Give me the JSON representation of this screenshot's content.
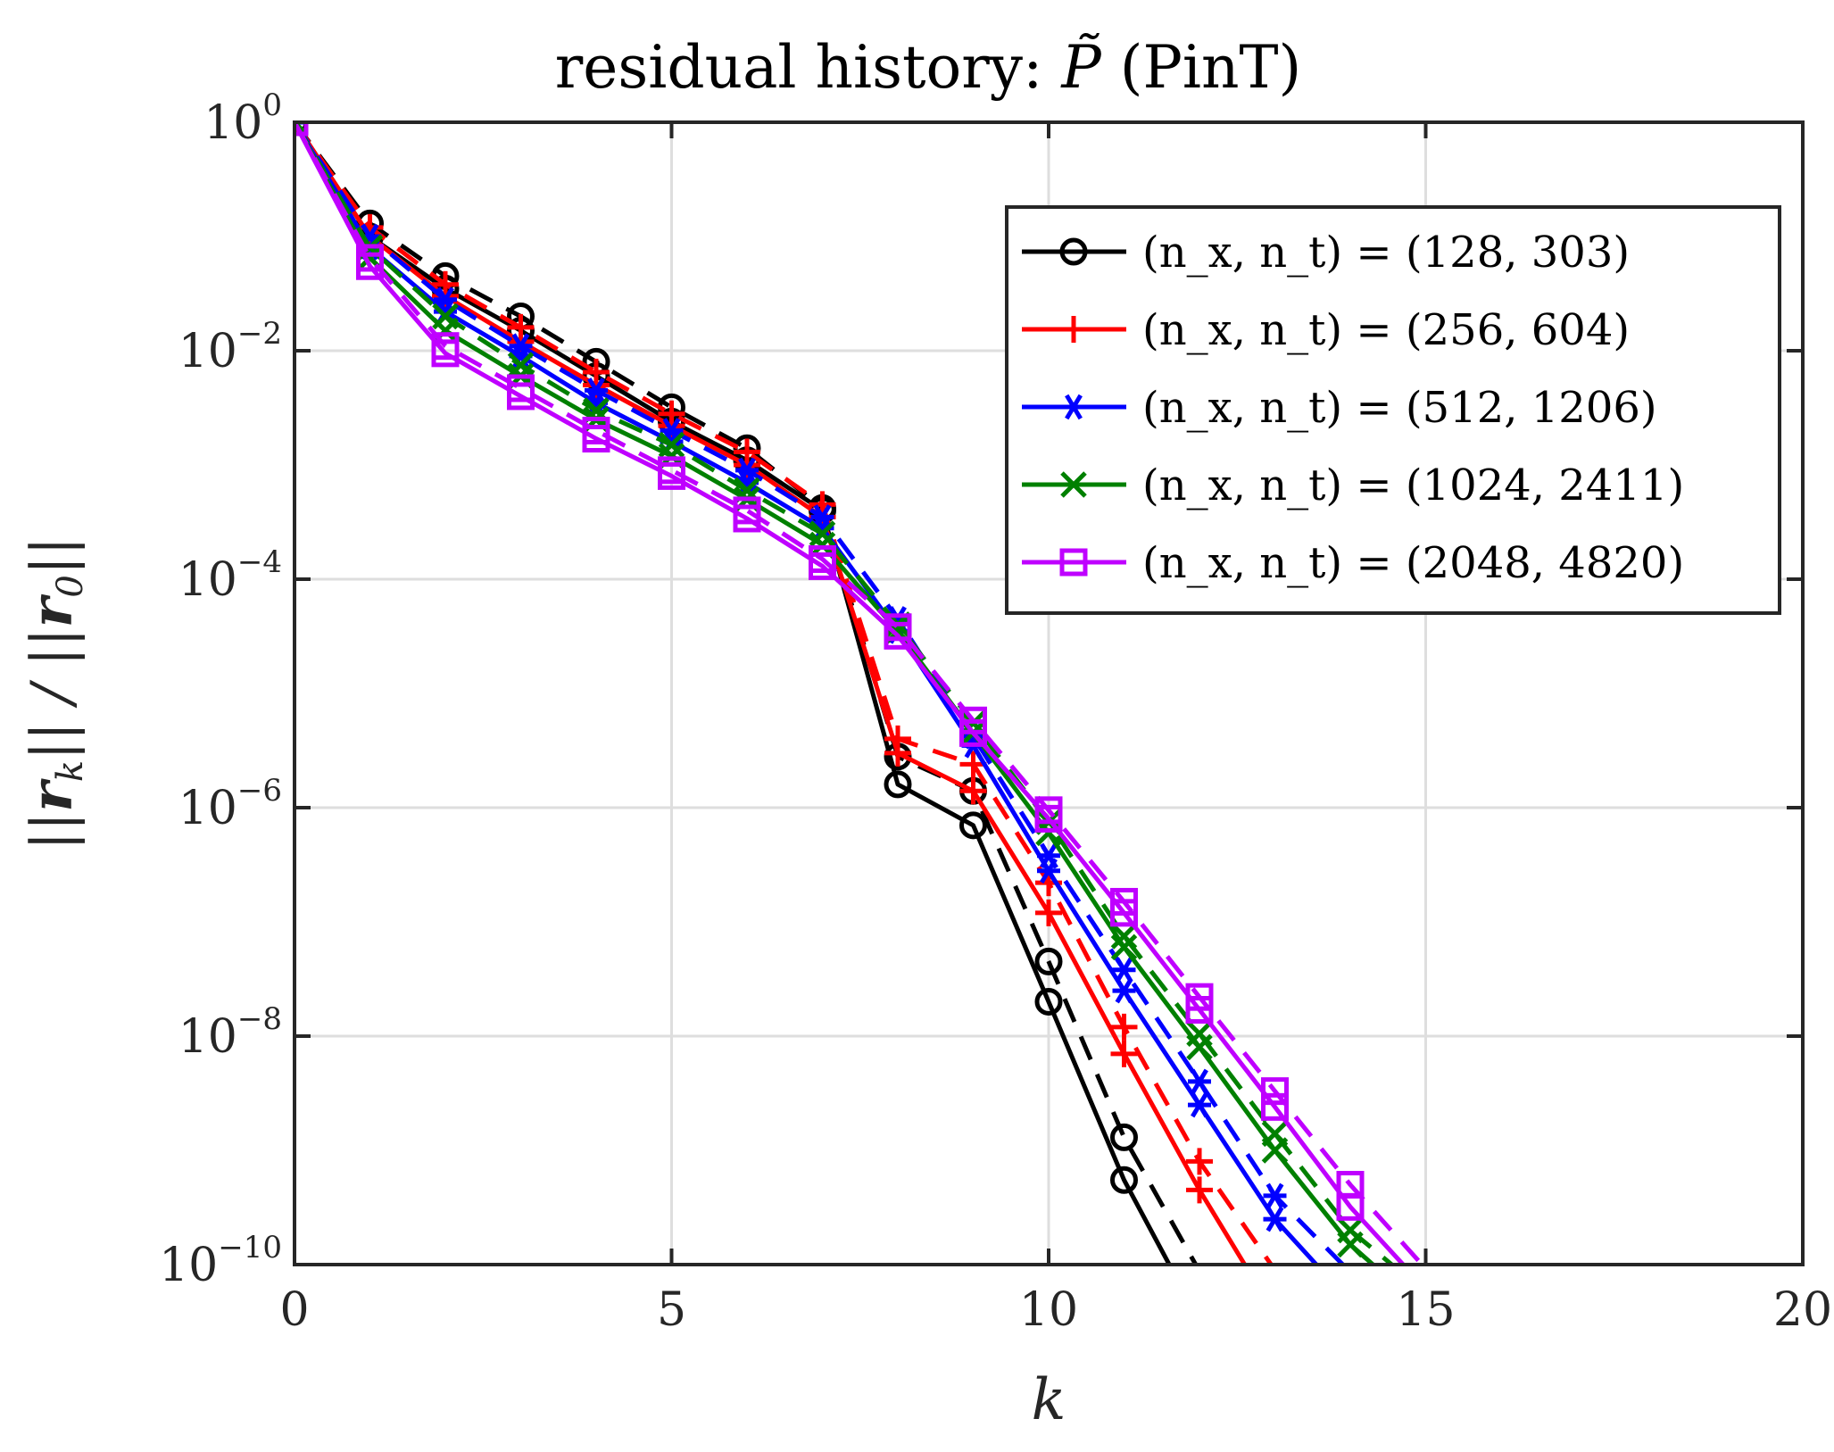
{
  "chart_data": {
    "type": "line",
    "title": "residual history: P̃ (PinT)",
    "xlabel": "k",
    "ylabel": "||r_k|| / ||r_0||",
    "xlim": [
      0,
      20
    ],
    "ylim": [
      1e-10,
      1
    ],
    "yscale": "log",
    "grid": true,
    "legend_position": "top-right",
    "x_ticks": [
      "0",
      "5",
      "10",
      "15",
      "20"
    ],
    "y_ticks": [
      {
        "base": "10",
        "exp": "0"
      },
      {
        "base": "10",
        "exp": "−2"
      },
      {
        "base": "10",
        "exp": "−4"
      },
      {
        "base": "10",
        "exp": "−6"
      },
      {
        "base": "10",
        "exp": "−8"
      },
      {
        "base": "10",
        "exp": "−10"
      }
    ],
    "series": [
      {
        "name": "(n_x, n_t) = (128, 303)",
        "color": "#000000",
        "marker": "circle",
        "solid": {
          "x": [
            0,
            1,
            2,
            3,
            4,
            5,
            6,
            7,
            8,
            9,
            10,
            11,
            11.6
          ],
          "y": [
            1,
            0.1,
            0.035,
            0.015,
            0.006,
            0.0024,
            0.0011,
            0.0004,
            1.6e-06,
            7e-07,
            2e-08,
            5.5e-10,
            1e-10
          ]
        },
        "dashed": {
          "x": [
            0,
            1,
            2,
            3,
            4,
            5,
            6,
            7,
            8,
            9,
            10,
            11,
            11.95
          ],
          "y": [
            1,
            0.13,
            0.045,
            0.02,
            0.008,
            0.0032,
            0.0014,
            0.00042,
            2.8e-06,
            1.4e-06,
            4.5e-08,
            1.3e-09,
            1e-10
          ]
        }
      },
      {
        "name": "(n_x, n_t) = (256, 604)",
        "color": "#ff0000",
        "marker": "plus",
        "solid": {
          "x": [
            0,
            1,
            2,
            3,
            4,
            5,
            6,
            7,
            8,
            9,
            10,
            11,
            12,
            12.6
          ],
          "y": [
            1,
            0.1,
            0.03,
            0.012,
            0.005,
            0.0022,
            0.001,
            0.00035,
            3e-06,
            1.4e-06,
            1.2e-07,
            7e-09,
            4.5e-10,
            1e-10
          ]
        },
        "dashed": {
          "x": [
            0,
            1,
            2,
            3,
            4,
            5,
            6,
            7,
            8,
            9,
            10,
            11,
            12,
            12.95
          ],
          "y": [
            1,
            0.12,
            0.038,
            0.016,
            0.0065,
            0.0028,
            0.0013,
            0.00045,
            4e-06,
            2.4e-06,
            2.2e-07,
            1.2e-08,
            8e-10,
            1e-10
          ]
        }
      },
      {
        "name": "(n_x, n_t) = (512, 1206)",
        "color": "#0000ff",
        "marker": "asterisk",
        "solid": {
          "x": [
            0,
            1,
            2,
            3,
            4,
            5,
            6,
            7,
            8,
            9,
            10,
            11,
            12,
            13,
            13.55
          ],
          "y": [
            1,
            0.08,
            0.022,
            0.009,
            0.0035,
            0.0016,
            0.0007,
            0.00028,
            3.5e-05,
            3.5e-06,
            2.8e-07,
            2.5e-08,
            2.5e-09,
            2.5e-10,
            1e-10
          ]
        },
        "dashed": {
          "x": [
            0,
            1,
            2,
            3,
            4,
            5,
            6,
            7,
            8,
            9,
            10,
            11,
            12,
            13,
            13.9
          ],
          "y": [
            1,
            0.1,
            0.028,
            0.011,
            0.0045,
            0.002,
            0.0009,
            0.00035,
            4.5e-05,
            4.2e-06,
            3.8e-07,
            3.8e-08,
            4e-09,
            4e-10,
            1e-10
          ]
        }
      },
      {
        "name": "(n_x, n_t) = (1024, 2411)",
        "color": "#008000",
        "marker": "x",
        "solid": {
          "x": [
            0,
            1,
            2,
            3,
            4,
            5,
            6,
            7,
            8,
            9,
            10,
            11,
            12,
            13,
            14,
            14.3
          ],
          "y": [
            1,
            0.065,
            0.015,
            0.006,
            0.0025,
            0.0012,
            0.0005,
            0.0002,
            3.5e-05,
            4.5e-06,
            6e-07,
            6e-08,
            8e-09,
            1e-09,
            1.5e-10,
            1e-10
          ]
        },
        "dashed": {
          "x": [
            0,
            1,
            2,
            3,
            4,
            5,
            6,
            7,
            8,
            9,
            10,
            11,
            12,
            13,
            14,
            14.55
          ],
          "y": [
            1,
            0.08,
            0.02,
            0.0075,
            0.003,
            0.0015,
            0.0006,
            0.00025,
            4e-05,
            5.5e-06,
            7.5e-07,
            7.5e-08,
            1.05e-08,
            1.4e-09,
            2e-10,
            1e-10
          ]
        }
      },
      {
        "name": "(n_x, n_t) = (2048, 4820)",
        "color": "#bf00ff",
        "marker": "square",
        "solid": {
          "x": [
            0,
            1,
            2,
            3,
            4,
            5,
            6,
            7,
            8,
            9,
            10,
            11,
            12,
            13,
            14,
            14.7
          ],
          "y": [
            1,
            0.055,
            0.0095,
            0.004,
            0.0017,
            0.0008,
            0.00034,
            0.00013,
            3.2e-05,
            4.5e-06,
            8e-07,
            1.2e-07,
            1.7e-08,
            2.4e-09,
            3.2e-10,
            1e-10
          ]
        },
        "dashed": {
          "x": [
            0,
            1,
            2,
            3,
            4,
            5,
            6,
            7,
            8,
            9,
            10,
            11,
            12,
            13,
            14,
            14.95
          ],
          "y": [
            1,
            0.065,
            0.011,
            0.0047,
            0.002,
            0.0009,
            0.0004,
            0.00015,
            3.8e-05,
            5.8e-06,
            9.5e-07,
            1.5e-07,
            2.2e-08,
            3.3e-09,
            5e-10,
            1e-10
          ]
        }
      }
    ]
  }
}
